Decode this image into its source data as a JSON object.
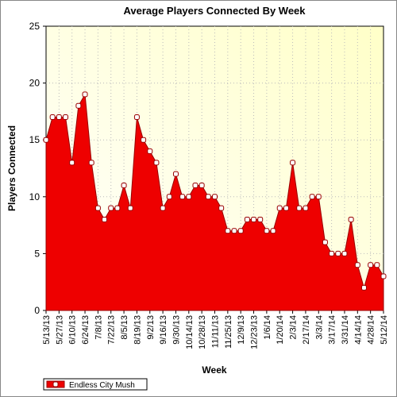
{
  "chart_data": {
    "type": "area",
    "title": "Average Players Connected By Week",
    "x_label": "Week",
    "y_label": "Players Connected",
    "categories": [
      "5/13/13",
      null,
      "5/27/13",
      null,
      "6/10/13",
      null,
      "6/24/13",
      null,
      "7/8/13",
      null,
      "7/22/13",
      null,
      "8/5/13",
      null,
      "8/19/13",
      null,
      "9/2/13",
      null,
      "9/16/13",
      null,
      "9/30/13",
      null,
      "10/14/13",
      null,
      "10/28/13",
      null,
      "11/11/13",
      null,
      "11/25/13",
      null,
      "12/9/13",
      null,
      "12/23/13",
      null,
      "1/6/14",
      null,
      "1/20/14",
      null,
      "2/3/14",
      null,
      "2/17/14",
      null,
      "3/3/14",
      null,
      "3/17/14",
      null,
      "3/31/14",
      null,
      "4/14/14",
      null,
      "4/28/14",
      null,
      "5/12/14"
    ],
    "series": [
      {
        "name": "Endless City Mush",
        "color": "#ee0000",
        "values": [
          15,
          17,
          17,
          17,
          13,
          18,
          19,
          13,
          9,
          8,
          9,
          9,
          11,
          9,
          17,
          15,
          14,
          13,
          9,
          10,
          12,
          10,
          10,
          11,
          11,
          10,
          10,
          9,
          7,
          7,
          7,
          8,
          8,
          8,
          7,
          7,
          9,
          9,
          13,
          9,
          9,
          10,
          10,
          6,
          5,
          5,
          5,
          8,
          4,
          2,
          4,
          4,
          3
        ]
      }
    ],
    "ylim": [
      0,
      25
    ],
    "yticks": [
      0,
      5,
      10,
      15,
      20,
      25
    ],
    "grid": true,
    "legend_position": "bottom-left"
  }
}
